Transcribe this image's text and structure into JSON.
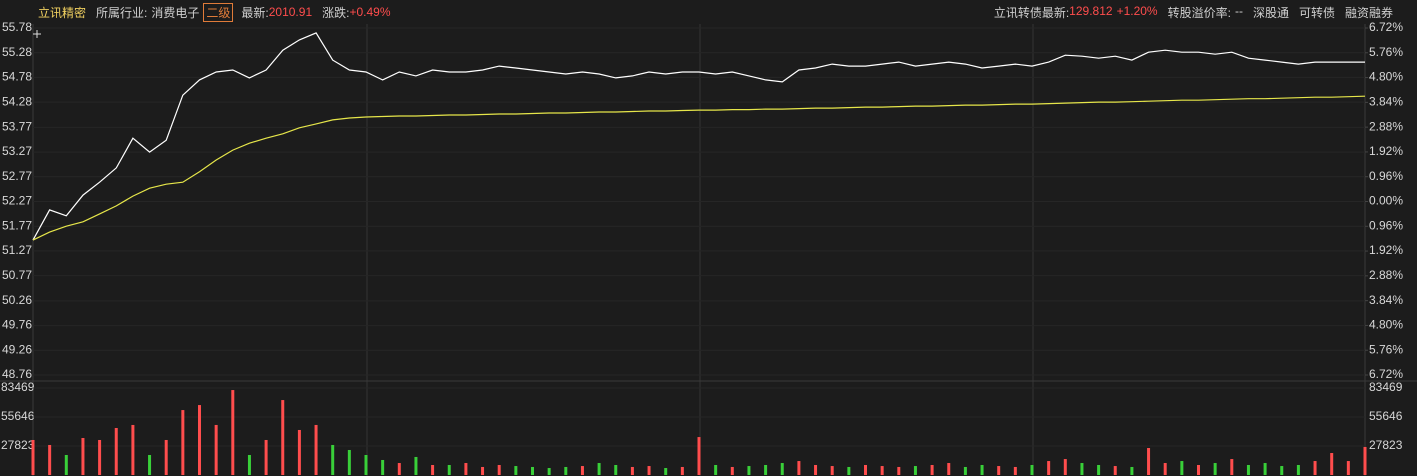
{
  "header": {
    "stock_name": "立讯精密",
    "industry_label": "所属行业:",
    "industry": "消费电子",
    "level": "二级",
    "latest_label": "最新:",
    "latest": "2010.91",
    "change_label": "涨跌:",
    "change": "+0.49%",
    "bond_label": "立讯转债最新:",
    "bond_price": "129.812",
    "bond_change": "+1.20%",
    "premium_label": "转股溢价率:",
    "premium": "--",
    "link_1": "深股通",
    "link_2": "可转债",
    "link_3": "融资融券"
  },
  "chart_data": [
    {
      "type": "line",
      "ylim": [
        48.76,
        55.78
      ],
      "yticks": [
        55.78,
        55.28,
        54.78,
        54.28,
        53.77,
        53.27,
        52.77,
        52.27,
        51.77,
        51.27,
        50.77,
        50.26,
        49.76,
        49.26,
        48.76
      ],
      "y2lim": [
        -6.72,
        6.72
      ],
      "y2ticks": [
        {
          "value": 6.72,
          "label": "6.72%"
        },
        {
          "value": 5.76,
          "label": "5.76%"
        },
        {
          "value": 4.8,
          "label": "4.80%"
        },
        {
          "value": 3.84,
          "label": "3.84%"
        },
        {
          "value": 2.88,
          "label": "2.88%"
        },
        {
          "value": 1.92,
          "label": "1.92%"
        },
        {
          "value": 0.96,
          "label": "0.96%"
        },
        {
          "value": 0,
          "label": "0.00%"
        },
        {
          "value": -0.96,
          "label": "0.96%"
        },
        {
          "value": -1.92,
          "label": "1.92%"
        },
        {
          "value": -2.88,
          "label": "2.88%"
        },
        {
          "value": -3.84,
          "label": "3.84%"
        },
        {
          "value": -4.8,
          "label": "4.80%"
        },
        {
          "value": -5.76,
          "label": "5.76%"
        },
        {
          "value": -6.72,
          "label": "6.72%"
        }
      ],
      "up_color": "#ff4d4d",
      "down_color": "#39d039",
      "grid": true,
      "series": [
        {
          "color": "#ffffff",
          "values": [
            51.49,
            52.1,
            51.98,
            52.4,
            52.66,
            52.95,
            53.55,
            53.27,
            53.51,
            54.42,
            54.73,
            54.89,
            54.93,
            54.77,
            54.93,
            55.33,
            55.54,
            55.68,
            55.13,
            54.93,
            54.89,
            54.73,
            54.89,
            54.81,
            54.93,
            54.89,
            54.89,
            54.93,
            55.01,
            54.97,
            54.93,
            54.89,
            54.85,
            54.89,
            54.85,
            54.77,
            54.81,
            54.89,
            54.85,
            54.89,
            54.89,
            54.85,
            54.89,
            54.81,
            54.73,
            54.69,
            54.93,
            54.97,
            55.05,
            55.01,
            55.01,
            55.05,
            55.09,
            55.01,
            55.05,
            55.09,
            55.05,
            54.97,
            55.01,
            55.05,
            55.01,
            55.09,
            55.23,
            55.21,
            55.17,
            55.21,
            55.13,
            55.29,
            55.33,
            55.29,
            55.29,
            55.25,
            55.29,
            55.17,
            55.13,
            55.09,
            55.05,
            55.09,
            55.09,
            55.09,
            55.09
          ]
        },
        {
          "color": "#e6e64a",
          "values": [
            51.49,
            51.65,
            51.77,
            51.86,
            52.02,
            52.18,
            52.38,
            52.54,
            52.62,
            52.66,
            52.87,
            53.11,
            53.31,
            53.45,
            53.55,
            53.64,
            53.76,
            53.84,
            53.92,
            53.96,
            53.98,
            53.99,
            54.0,
            54.0,
            54.01,
            54.02,
            54.02,
            54.03,
            54.04,
            54.04,
            54.05,
            54.06,
            54.06,
            54.07,
            54.08,
            54.08,
            54.09,
            54.1,
            54.1,
            54.11,
            54.12,
            54.12,
            54.13,
            54.13,
            54.14,
            54.14,
            54.15,
            54.16,
            54.16,
            54.17,
            54.18,
            54.18,
            54.19,
            54.2,
            54.2,
            54.21,
            54.22,
            54.22,
            54.23,
            54.24,
            54.24,
            54.25,
            54.26,
            54.27,
            54.28,
            54.28,
            54.29,
            54.3,
            54.31,
            54.32,
            54.32,
            54.33,
            54.34,
            54.35,
            54.35,
            54.36,
            54.37,
            54.38,
            54.38,
            54.39,
            54.4
          ]
        }
      ]
    },
    {
      "type": "bar",
      "ylim": [
        0,
        83469
      ],
      "yticks": [
        83469,
        55646,
        27823
      ],
      "values": [
        33600,
        28800,
        19200,
        35500,
        33600,
        45100,
        48000,
        19200,
        33600,
        62300,
        67100,
        48000,
        81500,
        19200,
        33600,
        71900,
        43200,
        48000,
        28800,
        24000,
        19200,
        14400,
        11500,
        17300,
        9600,
        9600,
        11500,
        7700,
        9600,
        8600,
        7700,
        6700,
        7700,
        8600,
        11500,
        9600,
        7700,
        8600,
        6700,
        7700,
        36400,
        9600,
        7700,
        8600,
        9600,
        11500,
        13400,
        9600,
        8600,
        7700,
        9600,
        8600,
        7700,
        8600,
        9600,
        11500,
        7700,
        9600,
        8600,
        7700,
        9600,
        13400,
        15300,
        11500,
        9600,
        8600,
        7700,
        25900,
        11500,
        13400,
        9600,
        11500,
        15300,
        9600,
        11500,
        8600,
        9600,
        13400,
        21100,
        13400,
        26900
      ]
    }
  ]
}
